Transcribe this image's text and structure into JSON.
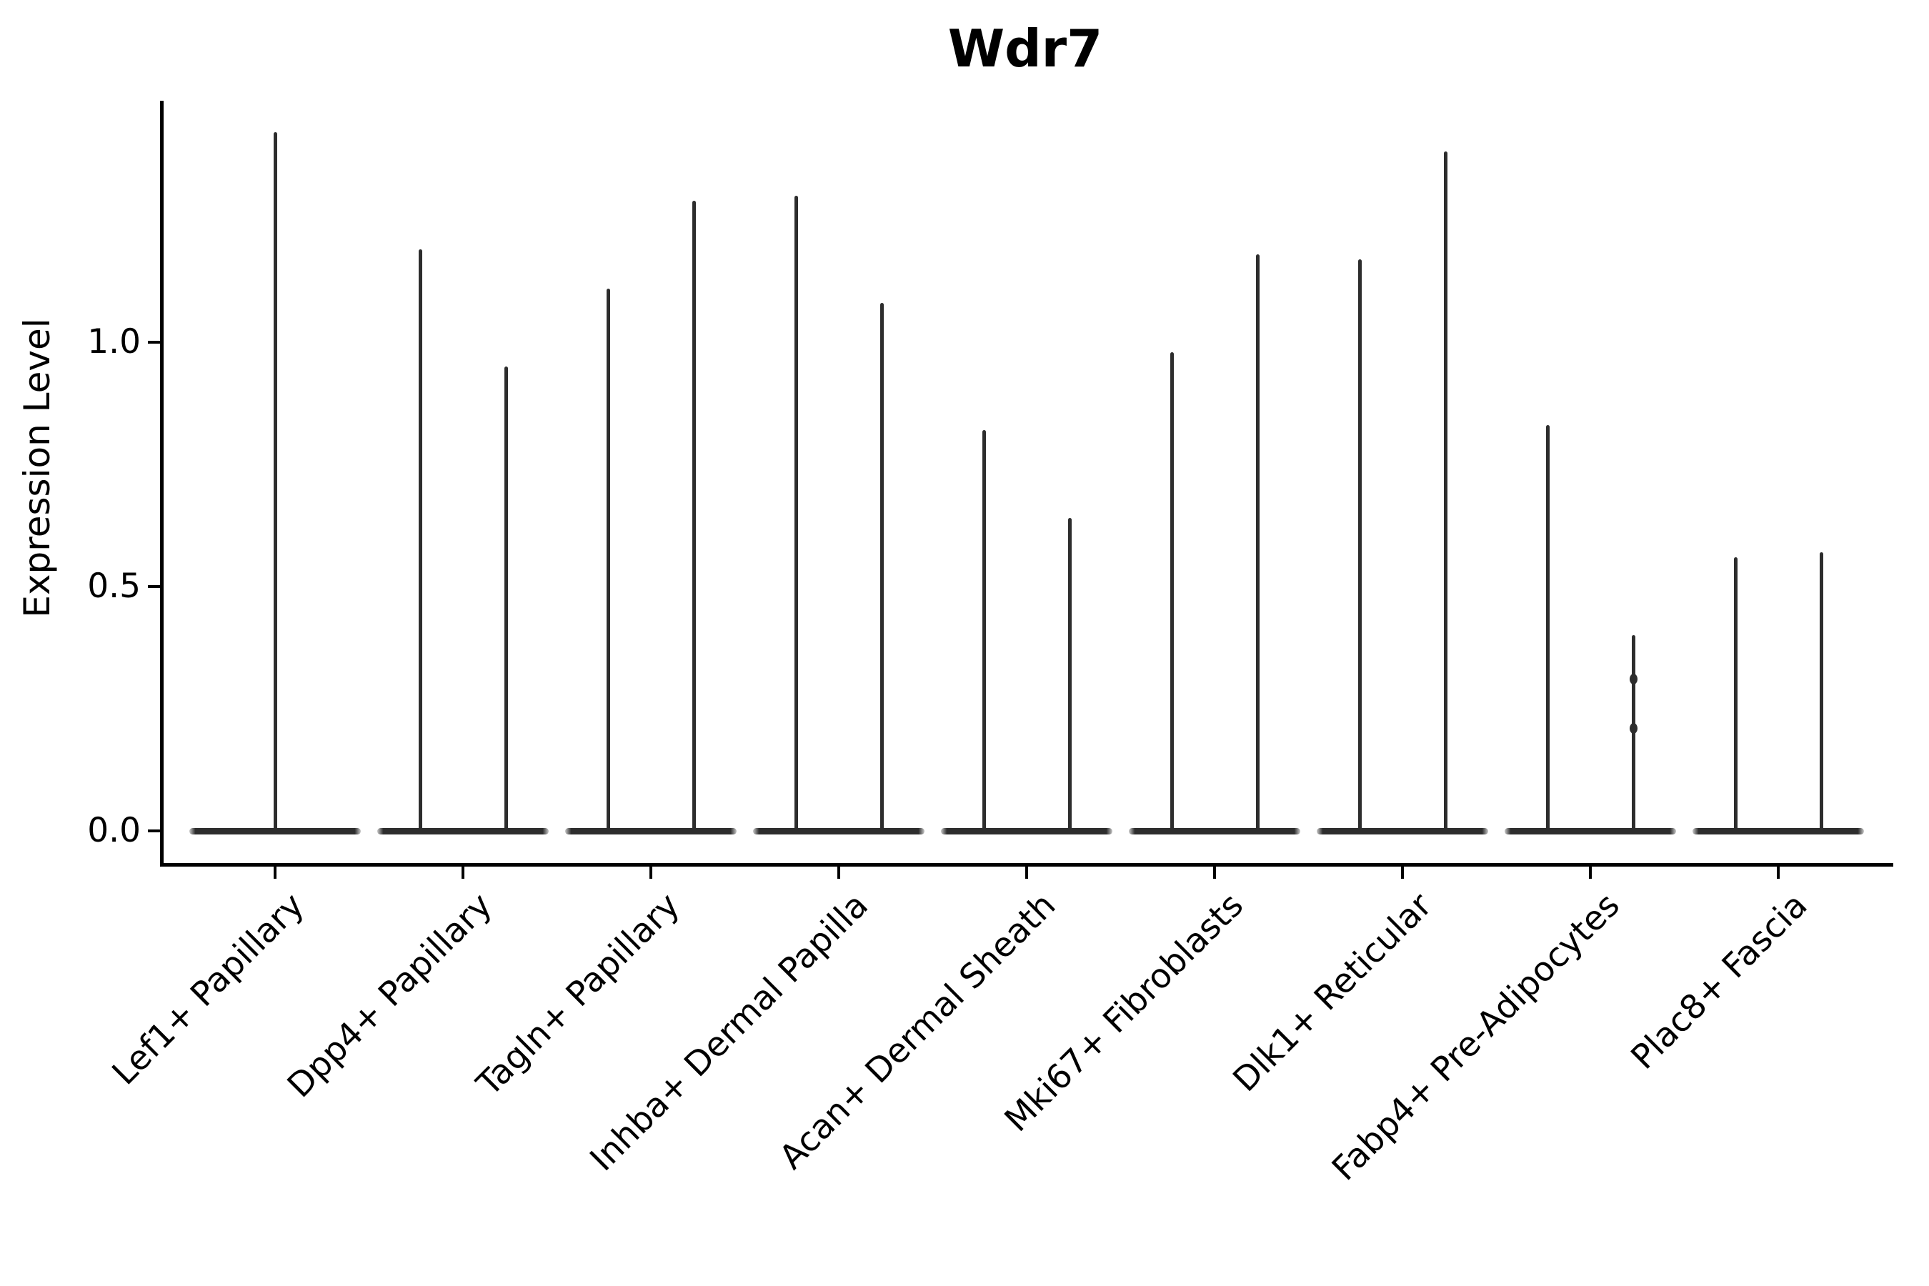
{
  "chart_data": {
    "type": "violin",
    "title": "Wdr7",
    "ylabel": "Expression Level",
    "xlabel": "",
    "ytick_labels": [
      "0.0",
      "0.5",
      "1.0"
    ],
    "ytick_values": [
      0.0,
      0.5,
      1.0
    ],
    "ylim": [
      -0.07,
      1.47
    ],
    "grid": false,
    "legend": "none",
    "colors": {
      "violin": "#2d2d2d",
      "axis": "#000000",
      "text": "#000000",
      "background": "#ffffff"
    },
    "categories": [
      "Lef1+ Papillary",
      "Dpp4+ Papillary",
      "Tagln+ Papillary",
      "Inhba+ Dermal Papilla",
      "Acan+ Dermal Sheath",
      "Mki67+ Fibroblasts",
      "Dlk1+ Reticular",
      "Fabp4+ Pre-Adipocytes",
      "Plac8+ Fascia"
    ],
    "series": [
      {
        "category": "Lef1+ Papillary",
        "violins": [
          {
            "position": "center",
            "max_expression": 1.43
          }
        ]
      },
      {
        "category": "Dpp4+ Papillary",
        "violins": [
          {
            "position": "left",
            "max_expression": 1.19
          },
          {
            "position": "right",
            "max_expression": 0.95
          }
        ]
      },
      {
        "category": "Tagln+ Papillary",
        "violins": [
          {
            "position": "left",
            "max_expression": 1.11
          },
          {
            "position": "right",
            "max_expression": 1.29
          }
        ]
      },
      {
        "category": "Inhba+ Dermal Papilla",
        "violins": [
          {
            "position": "left",
            "max_expression": 1.3
          },
          {
            "position": "right",
            "max_expression": 1.08
          }
        ]
      },
      {
        "category": "Acan+ Dermal Sheath",
        "violins": [
          {
            "position": "left",
            "max_expression": 0.82
          },
          {
            "position": "right",
            "max_expression": 0.64
          }
        ]
      },
      {
        "category": "Mki67+ Fibroblasts",
        "violins": [
          {
            "position": "left",
            "max_expression": 0.98
          },
          {
            "position": "right",
            "max_expression": 1.18
          }
        ]
      },
      {
        "category": "Dlk1+ Reticular",
        "violins": [
          {
            "position": "left",
            "max_expression": 1.17
          },
          {
            "position": "right",
            "max_expression": 1.39
          }
        ]
      },
      {
        "category": "Fabp4+ Pre-Adipocytes",
        "violins": [
          {
            "position": "left",
            "max_expression": 0.83
          },
          {
            "position": "right",
            "max_expression": 0.4,
            "bumps": [
              0.31,
              0.21
            ]
          }
        ]
      },
      {
        "category": "Plac8+ Fascia",
        "violins": [
          {
            "position": "left",
            "max_expression": 0.56
          },
          {
            "position": "right",
            "max_expression": 0.57
          }
        ]
      }
    ]
  }
}
